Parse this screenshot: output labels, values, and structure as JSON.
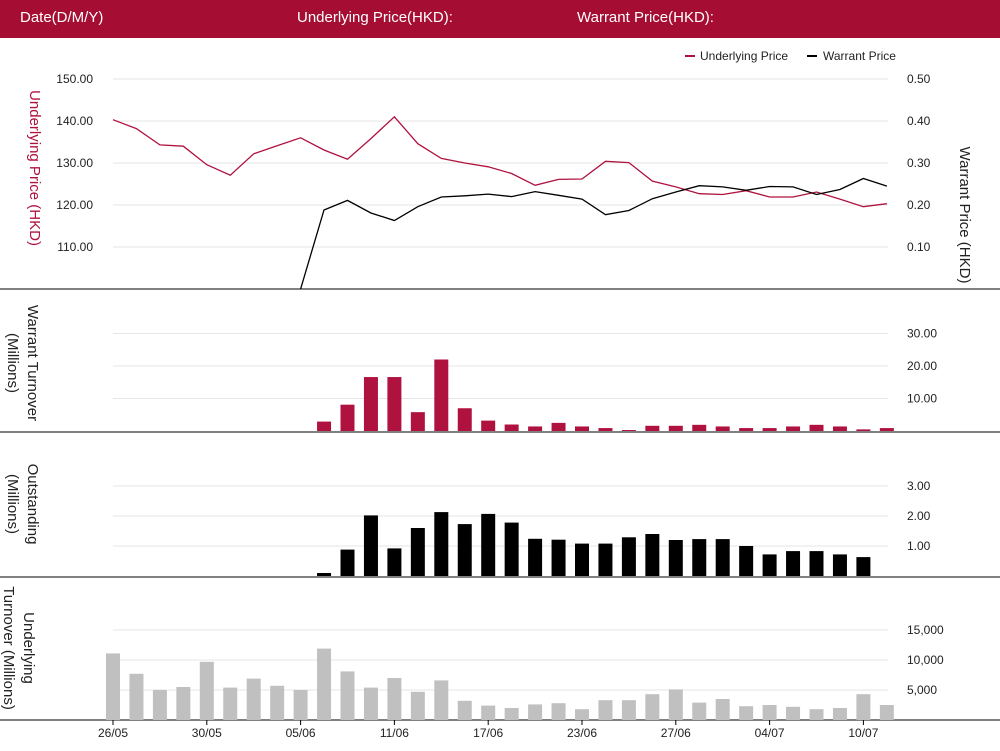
{
  "header": {
    "date_label": "Date(D/M/Y)",
    "underlying_label": "Underlying Price(HKD):",
    "warrant_label": "Warrant Price(HKD):"
  },
  "colors": {
    "brand": "#a50e32",
    "underlying": "#b0123f",
    "warrant": "#000000",
    "underlying_turnover": "#c0c0c0",
    "grid": "#e6e6e6"
  },
  "chart_data": [
    {
      "type": "line",
      "legend": {
        "position": "top-right",
        "items": [
          "Underlying Price",
          "Warrant Price"
        ]
      },
      "ylabel_left": "Underlying Price (HKD)",
      "ylabel_right": "Warrant  Price (HKD)",
      "left_axis": {
        "ticks": [
          "150.00",
          "140.00",
          "130.00",
          "120.00",
          "110.00"
        ],
        "ylim": [
          100,
          155
        ]
      },
      "right_axis": {
        "ticks": [
          "0.50",
          "0.40",
          "0.30",
          "0.20",
          "0.10"
        ],
        "ylim": [
          0.0,
          0.52
        ]
      },
      "x_ticks": [
        "26/05",
        "30/05",
        "05/06",
        "11/06",
        "17/06",
        "23/06",
        "27/06",
        "04/07",
        "10/07"
      ],
      "series": [
        {
          "name": "Underlying Price",
          "axis": "left",
          "values": [
            140.3,
            138.2,
            134.3,
            134.0,
            129.6,
            127.1,
            132.2,
            134.1,
            136.0,
            133.1,
            130.9,
            135.8,
            141.0,
            134.6,
            131.1,
            130.0,
            129.1,
            127.5,
            124.7,
            126.1,
            126.2,
            130.4,
            130.1,
            125.7,
            124.3,
            122.7,
            122.5,
            123.4,
            121.9,
            121.9,
            123.1,
            121.4,
            119.6,
            120.3
          ]
        },
        {
          "name": "Warrant Price",
          "axis": "right",
          "values": [
            null,
            null,
            null,
            null,
            null,
            null,
            null,
            null,
            0.0,
            0.188,
            0.211,
            0.181,
            0.163,
            0.196,
            0.219,
            0.222,
            0.226,
            0.22,
            0.232,
            0.223,
            0.214,
            0.177,
            0.187,
            0.215,
            0.231,
            0.246,
            0.243,
            0.235,
            0.244,
            0.243,
            0.225,
            0.237,
            0.263,
            0.245
          ]
        }
      ]
    },
    {
      "type": "bar",
      "ylabel": "Warrant  Turnover (Millions)",
      "ticks": [
        "30.00",
        "20.00",
        "10.00"
      ],
      "ylim": [
        0,
        36
      ],
      "values": [
        0,
        0,
        0,
        0,
        0,
        0,
        0,
        0,
        0,
        2.9,
        8.1,
        16.6,
        16.6,
        5.8,
        22.0,
        7.0,
        3.2,
        2.0,
        1.4,
        2.5,
        1.4,
        0.9,
        0.3,
        1.6,
        1.6,
        1.9,
        1.4,
        0.9,
        0.9,
        1.4,
        1.9,
        1.4,
        0.5,
        0.9
      ]
    },
    {
      "type": "bar",
      "ylabel": "Outstanding (Millions)",
      "ticks": [
        "3.00",
        "2.00",
        "1.00"
      ],
      "ylim": [
        0,
        3.6
      ],
      "values": [
        0,
        0,
        0,
        0,
        0,
        0,
        0,
        0,
        0,
        0.1,
        0.88,
        2.02,
        0.92,
        1.6,
        2.13,
        1.73,
        2.07,
        1.78,
        1.24,
        1.21,
        1.08,
        1.08,
        1.29,
        1.4,
        1.2,
        1.23,
        1.23,
        1.0,
        0.72,
        0.83,
        0.83,
        0.72,
        0.63,
        null
      ]
    },
    {
      "type": "bar",
      "ylabel": "Underlying Turnover (Millions)",
      "ticks": [
        "15,000",
        "10,000",
        "5,000"
      ],
      "ylim": [
        0,
        18000
      ],
      "values": [
        11100,
        7700,
        5000,
        5500,
        9700,
        5400,
        6900,
        5700,
        5000,
        11900,
        8100,
        5400,
        7000,
        4700,
        6600,
        3200,
        2400,
        2000,
        2600,
        2800,
        1800,
        3300,
        3300,
        4300,
        5100,
        2900,
        3500,
        2300,
        2500,
        2200,
        1800,
        2000,
        4300,
        2500
      ]
    }
  ]
}
